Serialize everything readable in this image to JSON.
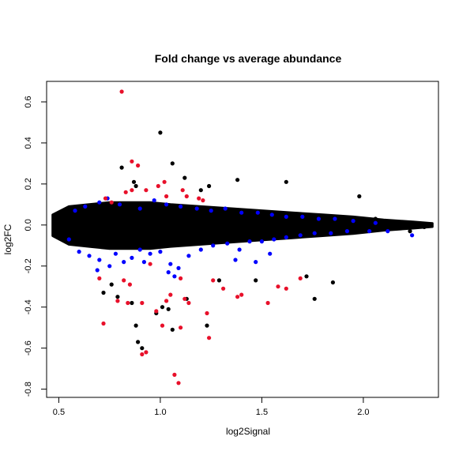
{
  "chart_data": {
    "type": "scatter",
    "title": "Fold change vs average abundance",
    "xlabel": "log2Signal",
    "ylabel": "log2FC",
    "xlim": [
      0.44,
      2.37
    ],
    "ylim": [
      -0.84,
      0.7
    ],
    "xticks": [
      0.5,
      1.0,
      1.5,
      2.0
    ],
    "xtick_labels": [
      "0.5",
      "1.0",
      "1.5",
      "2.0"
    ],
    "yticks": [
      -0.8,
      -0.6,
      -0.4,
      -0.2,
      0.0,
      0.2,
      0.4,
      0.6
    ],
    "ytick_labels": [
      "-0.8",
      "-0.6",
      "-0.4",
      "-0.2",
      "0.0",
      "0.2",
      "0.4",
      "0.6"
    ],
    "grid": false,
    "legend": "none",
    "colors": {
      "background": "#000000",
      "blue": "#0000ff",
      "red": "#e8102a"
    },
    "series": [
      {
        "color": "#000000",
        "points": [
          [
            0.81,
            0.28
          ],
          [
            0.87,
            0.21
          ],
          [
            1.0,
            0.45
          ],
          [
            1.06,
            0.3
          ],
          [
            1.12,
            0.23
          ],
          [
            0.88,
            0.19
          ],
          [
            1.2,
            0.17
          ],
          [
            1.24,
            0.19
          ],
          [
            1.38,
            0.22
          ],
          [
            1.62,
            0.21
          ],
          [
            1.98,
            0.14
          ],
          [
            2.06,
            0.03
          ],
          [
            0.86,
            -0.38
          ],
          [
            0.79,
            -0.35
          ],
          [
            0.88,
            -0.49
          ],
          [
            0.89,
            -0.57
          ],
          [
            0.91,
            -0.6
          ],
          [
            0.98,
            -0.43
          ],
          [
            1.01,
            -0.4
          ],
          [
            1.06,
            -0.51
          ],
          [
            1.04,
            -0.41
          ],
          [
            1.23,
            -0.49
          ],
          [
            1.13,
            -0.36
          ],
          [
            1.76,
            -0.36
          ],
          [
            1.85,
            -0.28
          ],
          [
            1.29,
            -0.27
          ],
          [
            1.47,
            -0.27
          ],
          [
            1.72,
            -0.25
          ],
          [
            0.72,
            -0.33
          ],
          [
            0.76,
            -0.29
          ],
          [
            2.23,
            -0.03
          ],
          [
            2.3,
            -0.01
          ],
          [
            2.33,
            0.0
          ]
        ]
      },
      {
        "color": "#0000ff",
        "points": [
          [
            0.58,
            0.07
          ],
          [
            0.63,
            0.09
          ],
          [
            0.7,
            0.11
          ],
          [
            0.74,
            0.13
          ],
          [
            0.8,
            0.1
          ],
          [
            0.9,
            0.08
          ],
          [
            0.97,
            0.12
          ],
          [
            1.03,
            0.1
          ],
          [
            1.1,
            0.09
          ],
          [
            1.18,
            0.08
          ],
          [
            1.25,
            0.07
          ],
          [
            1.32,
            0.08
          ],
          [
            1.4,
            0.06
          ],
          [
            1.48,
            0.06
          ],
          [
            1.55,
            0.05
          ],
          [
            1.62,
            0.04
          ],
          [
            1.7,
            0.04
          ],
          [
            1.78,
            0.03
          ],
          [
            1.86,
            0.03
          ],
          [
            1.95,
            0.02
          ],
          [
            2.06,
            0.01
          ],
          [
            0.55,
            -0.07
          ],
          [
            0.6,
            -0.13
          ],
          [
            0.65,
            -0.15
          ],
          [
            0.7,
            -0.17
          ],
          [
            0.75,
            -0.2
          ],
          [
            0.78,
            -0.14
          ],
          [
            0.82,
            -0.18
          ],
          [
            0.86,
            -0.16
          ],
          [
            0.9,
            -0.12
          ],
          [
            0.95,
            -0.14
          ],
          [
            1.0,
            -0.13
          ],
          [
            1.05,
            -0.19
          ],
          [
            1.09,
            -0.21
          ],
          [
            1.14,
            -0.15
          ],
          [
            1.2,
            -0.12
          ],
          [
            1.26,
            -0.1
          ],
          [
            1.33,
            -0.09
          ],
          [
            1.39,
            -0.12
          ],
          [
            1.44,
            -0.08
          ],
          [
            1.5,
            -0.08
          ],
          [
            1.56,
            -0.07
          ],
          [
            1.62,
            -0.06
          ],
          [
            1.69,
            -0.05
          ],
          [
            1.76,
            -0.04
          ],
          [
            1.84,
            -0.04
          ],
          [
            1.92,
            -0.03
          ],
          [
            2.03,
            -0.03
          ],
          [
            2.12,
            -0.03
          ],
          [
            2.24,
            -0.05
          ],
          [
            1.04,
            -0.23
          ],
          [
            1.07,
            -0.25
          ],
          [
            0.69,
            -0.22
          ],
          [
            0.92,
            -0.18
          ],
          [
            1.37,
            -0.17
          ],
          [
            1.47,
            -0.18
          ],
          [
            1.54,
            -0.14
          ]
        ]
      },
      {
        "color": "#e8102a",
        "points": [
          [
            0.81,
            0.65
          ],
          [
            0.86,
            0.31
          ],
          [
            0.89,
            0.29
          ],
          [
            0.73,
            0.13
          ],
          [
            0.76,
            0.11
          ],
          [
            0.83,
            0.16
          ],
          [
            0.86,
            0.17
          ],
          [
            0.93,
            0.17
          ],
          [
            0.99,
            0.19
          ],
          [
            1.02,
            0.21
          ],
          [
            1.03,
            0.14
          ],
          [
            1.11,
            0.17
          ],
          [
            1.13,
            0.14
          ],
          [
            1.19,
            0.13
          ],
          [
            1.21,
            0.12
          ],
          [
            0.7,
            -0.26
          ],
          [
            0.72,
            -0.48
          ],
          [
            0.79,
            -0.37
          ],
          [
            0.82,
            -0.27
          ],
          [
            0.85,
            -0.29
          ],
          [
            0.84,
            -0.38
          ],
          [
            0.91,
            -0.38
          ],
          [
            0.93,
            -0.62
          ],
          [
            0.91,
            -0.63
          ],
          [
            0.98,
            -0.42
          ],
          [
            1.01,
            -0.49
          ],
          [
            1.03,
            -0.37
          ],
          [
            1.05,
            -0.34
          ],
          [
            1.07,
            -0.73
          ],
          [
            1.09,
            -0.77
          ],
          [
            1.1,
            -0.5
          ],
          [
            1.12,
            -0.36
          ],
          [
            1.14,
            -0.38
          ],
          [
            1.23,
            -0.43
          ],
          [
            1.24,
            -0.55
          ],
          [
            1.26,
            -0.27
          ],
          [
            1.31,
            -0.31
          ],
          [
            1.38,
            -0.35
          ],
          [
            1.4,
            -0.34
          ],
          [
            1.53,
            -0.38
          ],
          [
            1.58,
            -0.3
          ],
          [
            1.62,
            -0.31
          ],
          [
            1.69,
            -0.26
          ],
          [
            0.95,
            -0.19
          ],
          [
            1.1,
            -0.26
          ]
        ]
      }
    ]
  }
}
